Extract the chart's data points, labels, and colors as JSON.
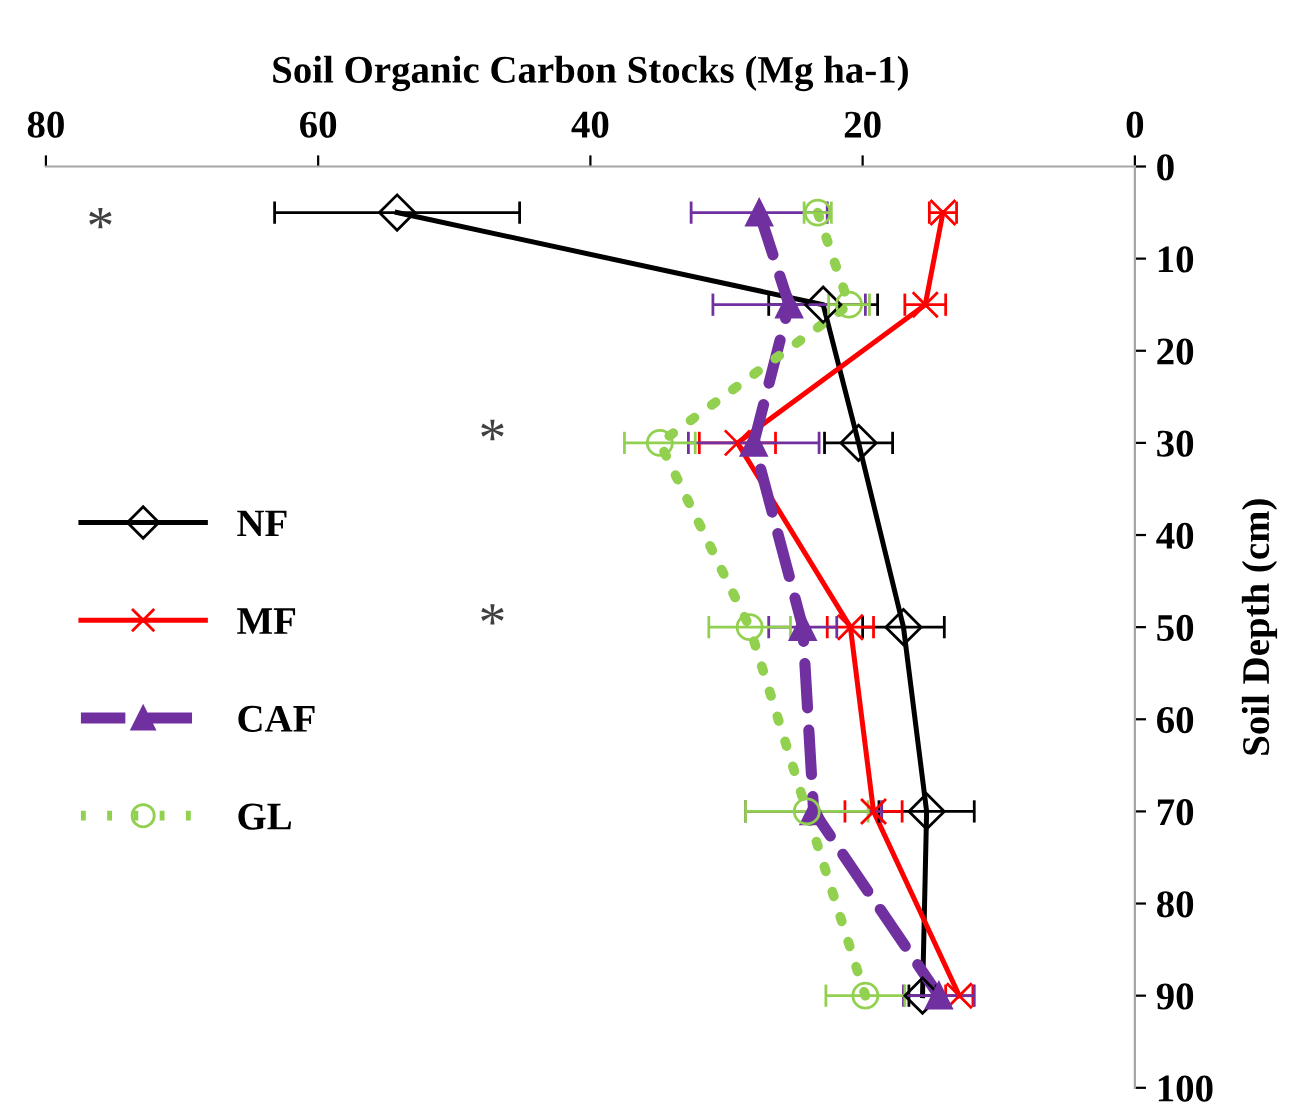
{
  "chart_data": {
    "type": "line",
    "orientation": "horizontal",
    "xlabel": "Soil Organic Carbon Stocks (Mg ha-1)",
    "ylabel": "Soil Depth (cm)",
    "x": [
      5,
      15,
      30,
      50,
      70,
      90
    ],
    "xlim": [
      80,
      0
    ],
    "xticks": [
      80,
      60,
      40,
      20,
      0
    ],
    "ylim": [
      100,
      0
    ],
    "yticks": [
      0,
      10,
      20,
      30,
      40,
      50,
      60,
      70,
      80,
      90,
      100
    ],
    "grid": false,
    "legend": "left",
    "series": [
      {
        "name": "NF",
        "color": "#000000",
        "marker": "diamond",
        "line_style": "solid",
        "values": [
          54.2,
          22.9,
          20.3,
          17.0,
          15.3,
          15.6
        ],
        "errors": [
          9,
          4,
          2.5,
          3,
          3.5,
          1
        ]
      },
      {
        "name": "MF",
        "color": "#ff0000",
        "marker": "cross",
        "line_style": "solid",
        "values": [
          14.1,
          15.4,
          29.2,
          20.9,
          19.2,
          12.9
        ],
        "errors": [
          1,
          1.5,
          2.8,
          1.7,
          2.1,
          1
        ]
      },
      {
        "name": "CAF",
        "color": "#7030a0",
        "marker": "triangle",
        "line_style": "dashed",
        "values": [
          27.6,
          25.4,
          28,
          24.4,
          23.6,
          14.4
        ],
        "errors": [
          5,
          5.6,
          4.8,
          2.5,
          5,
          2.6
        ]
      },
      {
        "name": "GL",
        "color": "#92d050",
        "marker": "circle",
        "line_style": "dotted",
        "values": [
          23.3,
          21.0,
          34.9,
          28.3,
          24.1,
          19.8
        ],
        "errors": [
          1,
          1.5,
          2.6,
          3,
          4.5,
          2.9
        ]
      }
    ],
    "annotations": [
      "*",
      "*",
      "*"
    ]
  }
}
